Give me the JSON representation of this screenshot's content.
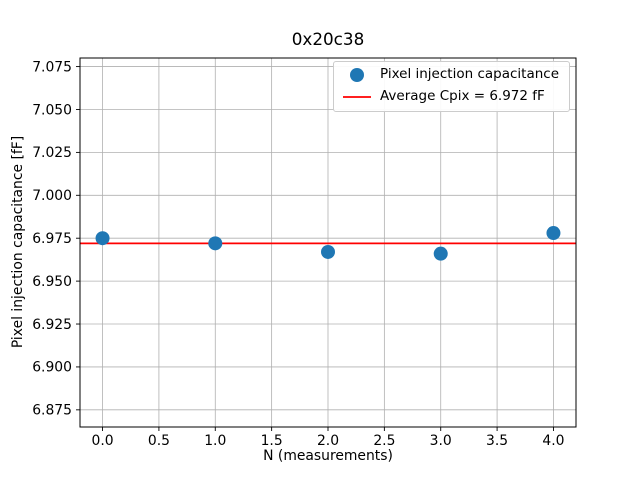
{
  "window": {
    "background": "#ffffff"
  },
  "chart_data": {
    "type": "scatter",
    "title": "0x20c38",
    "xlabel": "N (measurements)",
    "ylabel": "Pixel injection capacitance [fF]",
    "x": [
      0,
      1,
      2,
      3,
      4
    ],
    "y": [
      6.975,
      6.972,
      6.967,
      6.966,
      6.978
    ],
    "average": 6.972,
    "series": [
      {
        "name": "Pixel injection capacitance",
        "type": "scatter",
        "color": "#1f77b4"
      },
      {
        "name": "Average Cpix = 6.972 fF",
        "type": "hline",
        "color": "#ff0000",
        "value": 6.972
      }
    ],
    "xlim": [
      -0.2,
      4.2
    ],
    "ylim": [
      6.865,
      7.08
    ],
    "xticks": [
      0.0,
      0.5,
      1.0,
      1.5,
      2.0,
      2.5,
      3.0,
      3.5,
      4.0
    ],
    "xtick_labels": [
      "0.0",
      "0.5",
      "1.0",
      "1.5",
      "2.0",
      "2.5",
      "3.0",
      "3.5",
      "4.0"
    ],
    "yticks": [
      6.875,
      6.9,
      6.925,
      6.95,
      6.975,
      7.0,
      7.025,
      7.05,
      7.075
    ],
    "ytick_labels": [
      "6.875",
      "6.900",
      "6.925",
      "6.950",
      "6.975",
      "7.000",
      "7.025",
      "7.050",
      "7.075"
    ],
    "grid": true,
    "grid_color": "#b0b0b0",
    "marker_color": "#1f77b4",
    "line_color": "#ff0000",
    "legend": {
      "position": "upper right",
      "items": [
        {
          "label": "Pixel injection capacitance",
          "symbol": "circle-marker",
          "color": "#1f77b4"
        },
        {
          "label": "Average Cpix = 6.972 fF",
          "symbol": "line",
          "color": "#ff0000"
        }
      ]
    }
  }
}
